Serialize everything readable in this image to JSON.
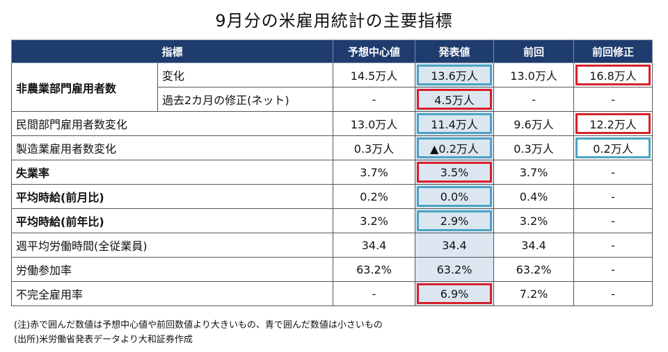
{
  "title": "9月分の米雇用統計の主要指標",
  "headers": {
    "indicator": "指標",
    "forecast": "予想中心値",
    "actual": "発表値",
    "previous": "前回",
    "revised": "前回修正"
  },
  "rows": [
    {
      "group": "非農業部門雇用者数",
      "label": "変化",
      "forecast": "14.5万人",
      "actual": "13.6万人",
      "previous": "13.0万人",
      "revised": "16.8万人"
    },
    {
      "label": "過去2カ月の修正(ネット)",
      "forecast": "-",
      "actual": "4.5万人",
      "previous": "-",
      "revised": "-"
    },
    {
      "label": "民間部門雇用者数変化",
      "forecast": "13.0万人",
      "actual": "11.4万人",
      "previous": "9.6万人",
      "revised": "12.2万人"
    },
    {
      "label": "製造業雇用者数変化",
      "forecast": "0.3万人",
      "actual": "▲0.2万人",
      "previous": "0.3万人",
      "revised": "0.2万人"
    },
    {
      "label": "失業率",
      "forecast": "3.7%",
      "actual": "3.5%",
      "previous": "3.7%",
      "revised": "-"
    },
    {
      "label": "平均時給(前月比)",
      "forecast": "0.2%",
      "actual": "0.0%",
      "previous": "0.4%",
      "revised": "-"
    },
    {
      "label": "平均時給(前年比)",
      "forecast": "3.2%",
      "actual": "2.9%",
      "previous": "3.2%",
      "revised": "-"
    },
    {
      "label": "週平均労働時間(全従業員)",
      "forecast": "34.4",
      "actual": "34.4",
      "previous": "34.4",
      "revised": "-"
    },
    {
      "label": "労働参加率",
      "forecast": "63.2%",
      "actual": "63.2%",
      "previous": "63.2%",
      "revised": "-"
    },
    {
      "label": "不完全雇用率",
      "forecast": "-",
      "actual": "6.9%",
      "previous": "7.2%",
      "revised": "-"
    }
  ],
  "notes": [
    "(注)赤で囲んだ数値は予想中心値や前回数値より大きいもの、青で囲んだ数値は小さいもの",
    "(出所)米労働省発表データより大和証券作成"
  ],
  "colors": {
    "header_bg": "#1f3c6e",
    "actual_bg": "#dce6f1",
    "red_box": "#d81e2a",
    "blue_box": "#4aa3c4"
  }
}
